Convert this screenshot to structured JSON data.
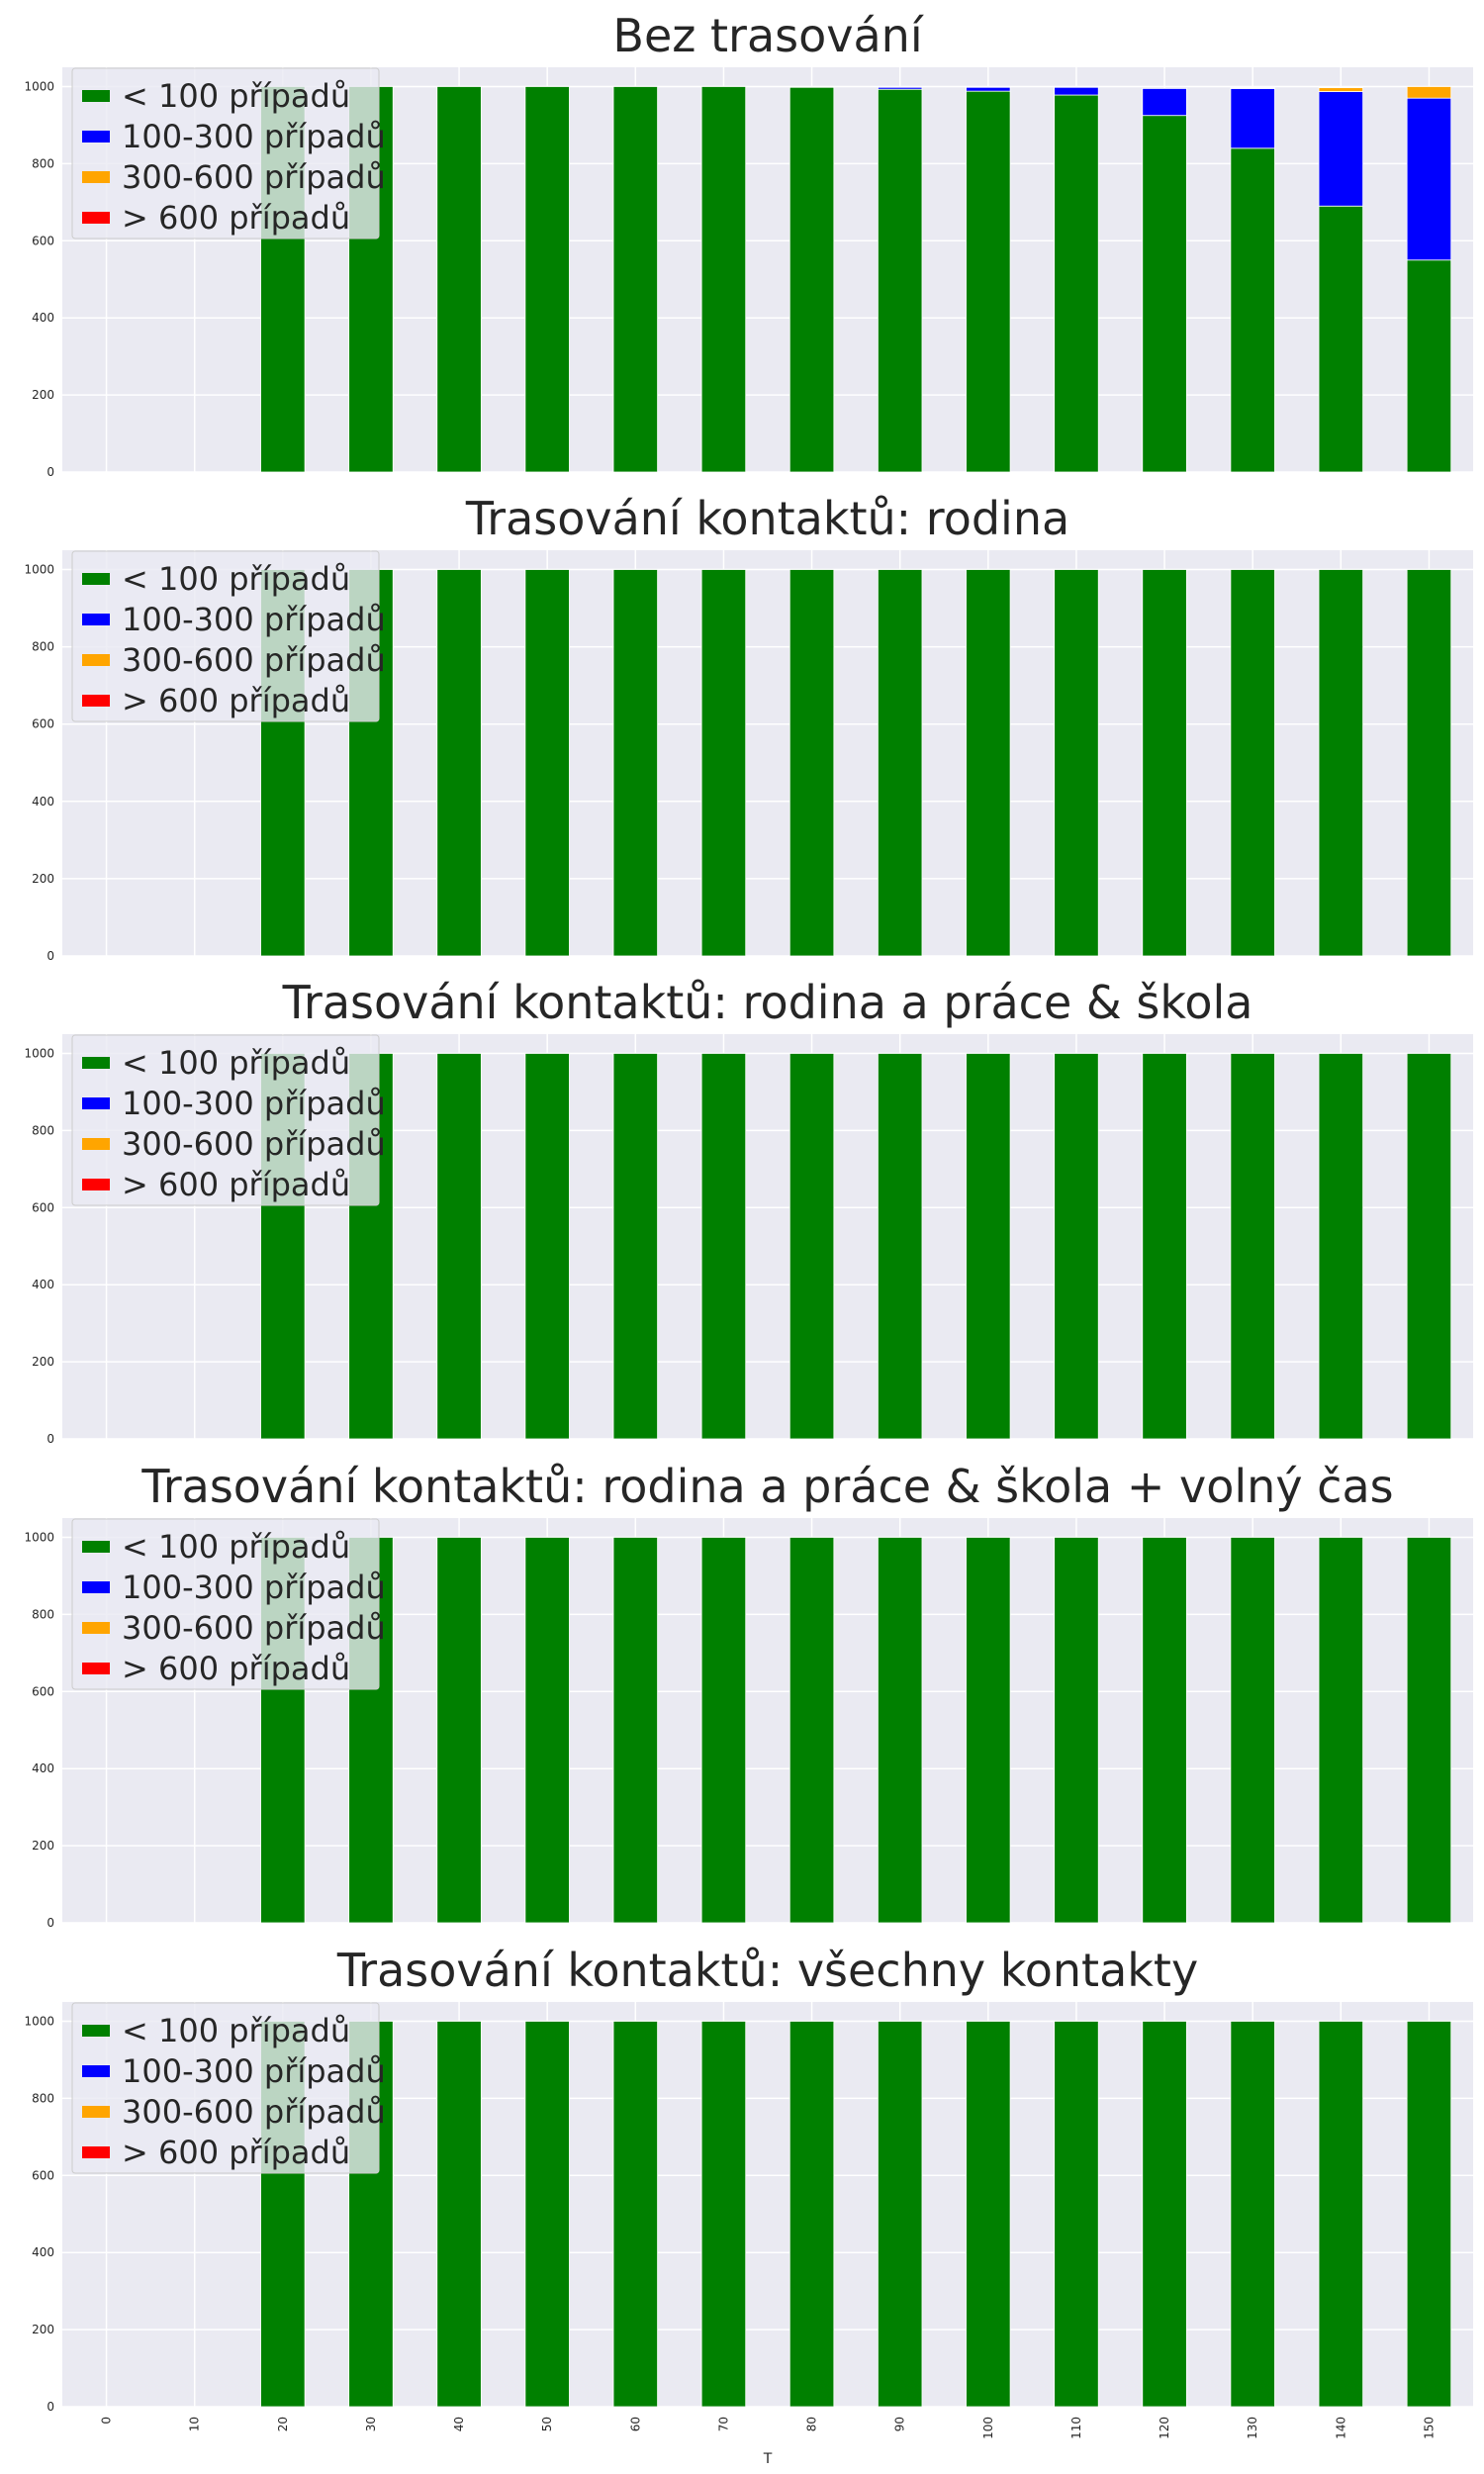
{
  "chart_data": [
    {
      "type": "bar",
      "stacked": true,
      "title": "Bez trasování",
      "categories": [
        "0",
        "10",
        "20",
        "30",
        "40",
        "50",
        "60",
        "70",
        "80",
        "90",
        "100",
        "110",
        "120",
        "130",
        "140",
        "150"
      ],
      "series": [
        {
          "name": "< 100 případů",
          "color": "#008000",
          "values": [
            0,
            0,
            1000,
            1000,
            1000,
            1000,
            1000,
            1000,
            998,
            993,
            988,
            978,
            925,
            840,
            690,
            550
          ]
        },
        {
          "name": "100-300 případů",
          "color": "#0000ff",
          "values": [
            0,
            0,
            0,
            0,
            0,
            0,
            0,
            0,
            0,
            5,
            10,
            20,
            70,
            155,
            297,
            420
          ]
        },
        {
          "name": "300-600 případů",
          "color": "#ffa500",
          "values": [
            0,
            0,
            0,
            0,
            0,
            0,
            0,
            0,
            0,
            0,
            0,
            0,
            0,
            2,
            10,
            30
          ]
        },
        {
          "name": "> 600 případů",
          "color": "#ff0000",
          "values": [
            0,
            0,
            0,
            0,
            0,
            0,
            0,
            0,
            0,
            0,
            0,
            0,
            0,
            0,
            0,
            0
          ]
        }
      ],
      "yticks": [
        "0",
        "200",
        "400",
        "600",
        "800",
        "1000"
      ],
      "ylim": [
        0,
        1050
      ],
      "legend": "upper-left"
    },
    {
      "type": "bar",
      "stacked": true,
      "title": "Trasování kontaktů: rodina",
      "categories": [
        "0",
        "10",
        "20",
        "30",
        "40",
        "50",
        "60",
        "70",
        "80",
        "90",
        "100",
        "110",
        "120",
        "130",
        "140",
        "150"
      ],
      "series": [
        {
          "name": "< 100 případů",
          "color": "#008000",
          "values": [
            0,
            0,
            1000,
            1000,
            1000,
            1000,
            1000,
            1000,
            1000,
            1000,
            1000,
            1000,
            1000,
            1000,
            1000,
            1000
          ]
        },
        {
          "name": "100-300 případů",
          "color": "#0000ff",
          "values": [
            0,
            0,
            0,
            0,
            0,
            0,
            0,
            0,
            0,
            0,
            0,
            0,
            0,
            0,
            0,
            0
          ]
        },
        {
          "name": "300-600 případů",
          "color": "#ffa500",
          "values": [
            0,
            0,
            0,
            0,
            0,
            0,
            0,
            0,
            0,
            0,
            0,
            0,
            0,
            0,
            0,
            0
          ]
        },
        {
          "name": "> 600 případů",
          "color": "#ff0000",
          "values": [
            0,
            0,
            0,
            0,
            0,
            0,
            0,
            0,
            0,
            0,
            0,
            0,
            0,
            0,
            0,
            0
          ]
        }
      ],
      "yticks": [
        "0",
        "200",
        "400",
        "600",
        "800",
        "1000"
      ],
      "ylim": [
        0,
        1050
      ],
      "legend": "upper-left"
    },
    {
      "type": "bar",
      "stacked": true,
      "title": "Trasování kontaktů: rodina a práce & škola",
      "categories": [
        "0",
        "10",
        "20",
        "30",
        "40",
        "50",
        "60",
        "70",
        "80",
        "90",
        "100",
        "110",
        "120",
        "130",
        "140",
        "150"
      ],
      "series": [
        {
          "name": "< 100 případů",
          "color": "#008000",
          "values": [
            0,
            0,
            1000,
            1000,
            1000,
            1000,
            1000,
            1000,
            1000,
            1000,
            1000,
            1000,
            1000,
            1000,
            1000,
            1000
          ]
        },
        {
          "name": "100-300 případů",
          "color": "#0000ff",
          "values": [
            0,
            0,
            0,
            0,
            0,
            0,
            0,
            0,
            0,
            0,
            0,
            0,
            0,
            0,
            0,
            0
          ]
        },
        {
          "name": "300-600 případů",
          "color": "#ffa500",
          "values": [
            0,
            0,
            0,
            0,
            0,
            0,
            0,
            0,
            0,
            0,
            0,
            0,
            0,
            0,
            0,
            0
          ]
        },
        {
          "name": "> 600 případů",
          "color": "#ff0000",
          "values": [
            0,
            0,
            0,
            0,
            0,
            0,
            0,
            0,
            0,
            0,
            0,
            0,
            0,
            0,
            0,
            0
          ]
        }
      ],
      "yticks": [
        "0",
        "200",
        "400",
        "600",
        "800",
        "1000"
      ],
      "ylim": [
        0,
        1050
      ],
      "legend": "upper-left"
    },
    {
      "type": "bar",
      "stacked": true,
      "title": "Trasování kontaktů: rodina a práce & škola + volný čas",
      "categories": [
        "0",
        "10",
        "20",
        "30",
        "40",
        "50",
        "60",
        "70",
        "80",
        "90",
        "100",
        "110",
        "120",
        "130",
        "140",
        "150"
      ],
      "series": [
        {
          "name": "< 100 případů",
          "color": "#008000",
          "values": [
            0,
            0,
            1000,
            1000,
            1000,
            1000,
            1000,
            1000,
            1000,
            1000,
            1000,
            1000,
            1000,
            1000,
            1000,
            1000
          ]
        },
        {
          "name": "100-300 případů",
          "color": "#0000ff",
          "values": [
            0,
            0,
            0,
            0,
            0,
            0,
            0,
            0,
            0,
            0,
            0,
            0,
            0,
            0,
            0,
            0
          ]
        },
        {
          "name": "300-600 případů",
          "color": "#ffa500",
          "values": [
            0,
            0,
            0,
            0,
            0,
            0,
            0,
            0,
            0,
            0,
            0,
            0,
            0,
            0,
            0,
            0
          ]
        },
        {
          "name": "> 600 případů",
          "color": "#ff0000",
          "values": [
            0,
            0,
            0,
            0,
            0,
            0,
            0,
            0,
            0,
            0,
            0,
            0,
            0,
            0,
            0,
            0
          ]
        }
      ],
      "yticks": [
        "0",
        "200",
        "400",
        "600",
        "800",
        "1000"
      ],
      "ylim": [
        0,
        1050
      ],
      "legend": "upper-left"
    },
    {
      "type": "bar",
      "stacked": true,
      "title": "Trasování kontaktů: všechny kontakty",
      "categories": [
        "0",
        "10",
        "20",
        "30",
        "40",
        "50",
        "60",
        "70",
        "80",
        "90",
        "100",
        "110",
        "120",
        "130",
        "140",
        "150"
      ],
      "series": [
        {
          "name": "< 100 případů",
          "color": "#008000",
          "values": [
            0,
            0,
            1000,
            1000,
            1000,
            1000,
            1000,
            1000,
            1000,
            1000,
            1000,
            1000,
            1000,
            1000,
            1000,
            1000
          ]
        },
        {
          "name": "100-300 případů",
          "color": "#0000ff",
          "values": [
            0,
            0,
            0,
            0,
            0,
            0,
            0,
            0,
            0,
            0,
            0,
            0,
            0,
            0,
            0,
            0
          ]
        },
        {
          "name": "300-600 případů",
          "color": "#ffa500",
          "values": [
            0,
            0,
            0,
            0,
            0,
            0,
            0,
            0,
            0,
            0,
            0,
            0,
            0,
            0,
            0,
            0
          ]
        },
        {
          "name": "> 600 případů",
          "color": "#ff0000",
          "values": [
            0,
            0,
            0,
            0,
            0,
            0,
            0,
            0,
            0,
            0,
            0,
            0,
            0,
            0,
            0,
            0
          ]
        }
      ],
      "yticks": [
        "0",
        "200",
        "400",
        "600",
        "800",
        "1000"
      ],
      "ylim": [
        0,
        1050
      ],
      "legend": "upper-left",
      "xlabel": "T"
    }
  ],
  "style": {
    "axes_background": "#eaeaf2",
    "grid_color": "#ffffff"
  }
}
